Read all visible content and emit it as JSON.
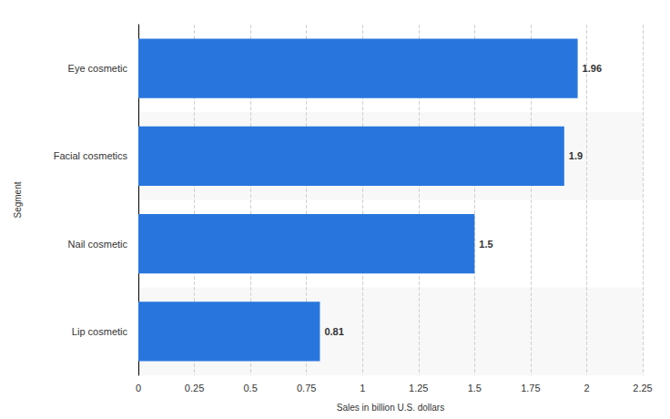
{
  "chart_data": {
    "type": "bar",
    "orientation": "horizontal",
    "categories": [
      "Eye cosmetic",
      "Facial cosmetics",
      "Nail cosmetic",
      "Lip cosmetic"
    ],
    "values": [
      1.96,
      1.9,
      1.5,
      0.81
    ],
    "color": "#2876dd",
    "xlabel": "Sales in billion U.S. dollars",
    "ylabel": "Segment",
    "xlim": [
      0,
      2.25
    ],
    "xticks": [
      0,
      0.25,
      0.5,
      0.75,
      1,
      1.25,
      1.5,
      1.75,
      2,
      2.25
    ],
    "grid": true,
    "data_labels": true
  }
}
